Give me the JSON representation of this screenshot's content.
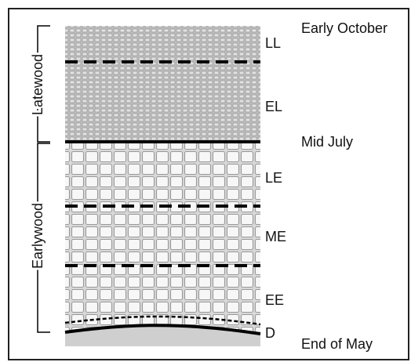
{
  "wood_labels": {
    "latewood": "Latewood",
    "earlywood": "Earlywood"
  },
  "zones": [
    {
      "code": "LL"
    },
    {
      "code": "EL"
    },
    {
      "code": "LE"
    },
    {
      "code": "ME"
    },
    {
      "code": "EE"
    },
    {
      "code": "D"
    }
  ],
  "time_labels": {
    "top": "Early October",
    "middle": "Mid July",
    "bottom": "End of May"
  },
  "colors": {
    "latewood_tissue": "#bdbdbd",
    "earlywood_tissue": "#e6e6e6",
    "cell_walls": "#8f8f8f",
    "boundary_lines": "#000000"
  }
}
